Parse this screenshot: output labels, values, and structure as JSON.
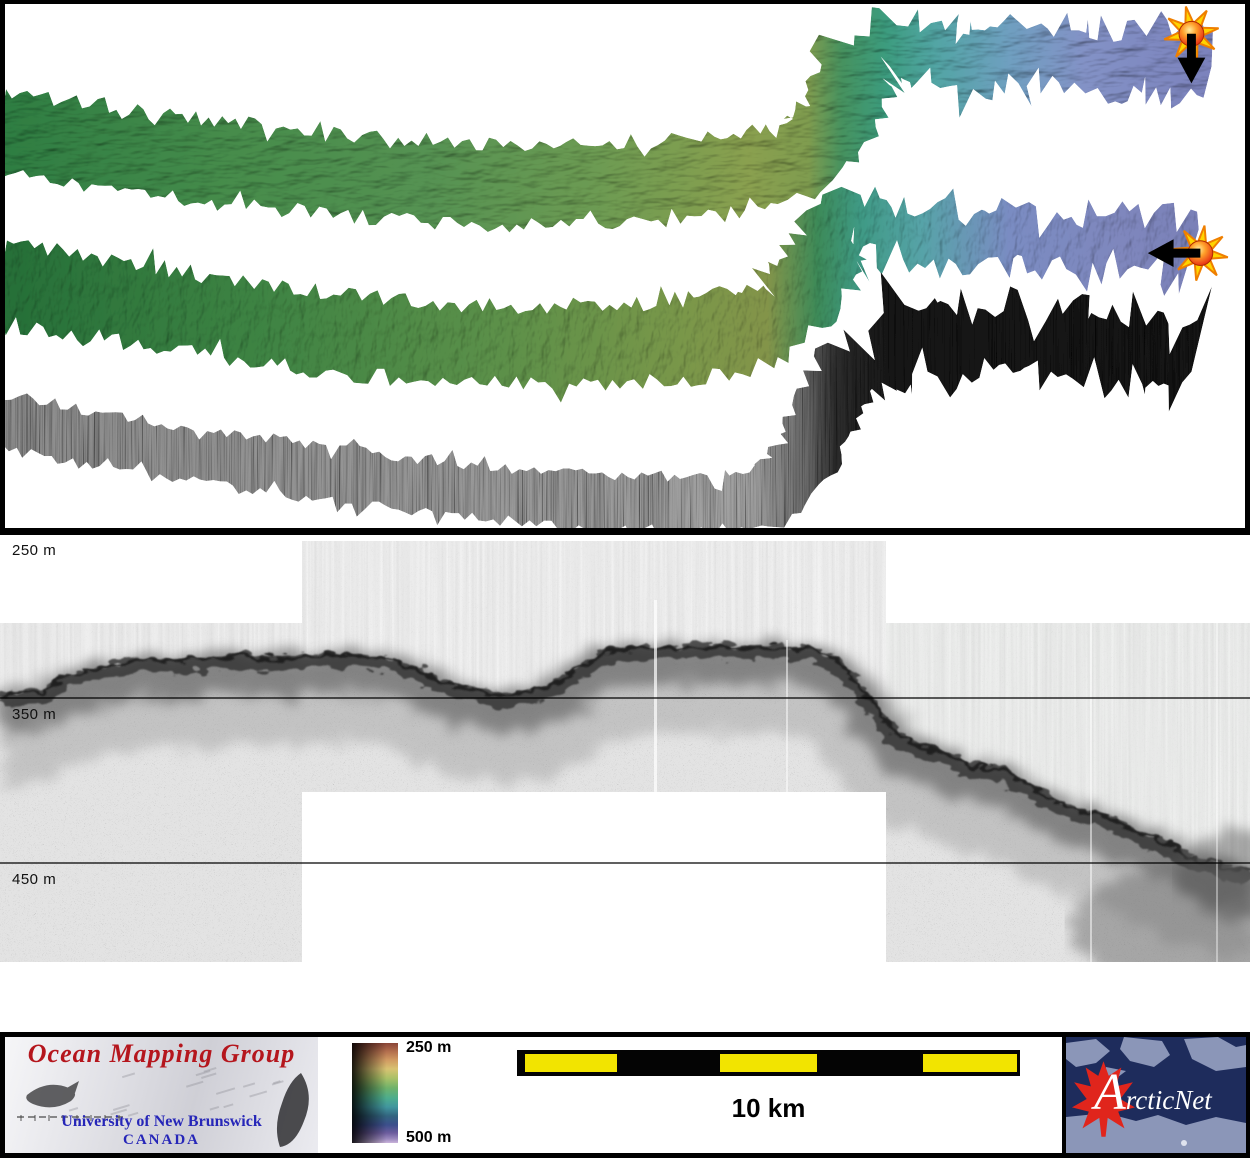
{
  "swath_panel": {
    "markers": [
      {
        "icon": "sun-burst-icon",
        "arrow_direction": "down"
      },
      {
        "icon": "sun-burst-icon",
        "arrow_direction": "left"
      }
    ]
  },
  "echogram": {
    "depth_labels": [
      "250 m",
      "350 m",
      "450 m"
    ]
  },
  "colorbar": {
    "top_label": "250 m",
    "bottom_label": "500 m"
  },
  "scalebar": {
    "label": "10 km"
  },
  "logos": {
    "omg": {
      "title": "Ocean Mapping Group",
      "university": "University of New Brunswick",
      "country": "CANADA"
    },
    "arcticnet": {
      "name": "ArcticNet"
    }
  },
  "colors": {
    "scalebar_yellow": "#f2e400",
    "omg_title_red": "#b5161d",
    "unb_blue": "#2626b8",
    "arcticnet_navy": "#1e2c5c",
    "arcticnet_land": "#8b96b8",
    "maple_leaf_red": "#e0251c",
    "bathy_deep_green": "#2e7d42",
    "bathy_mid_olive": "#8aa04f",
    "bathy_shallow_blue": "#7a7eba"
  }
}
